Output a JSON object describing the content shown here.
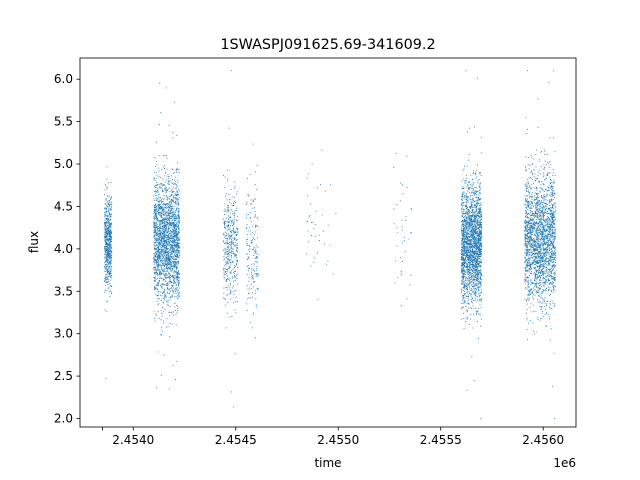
{
  "chart_data": {
    "type": "scatter",
    "title": "1SWASPJ091625.69-341609.2",
    "xlabel": "time",
    "ylabel": "flux",
    "x_offset_label": "1e6",
    "x_scale": 1000000,
    "xlim": [
      2453740,
      2456160
    ],
    "ylim": [
      1.9,
      6.25
    ],
    "x_ticks": [
      2453850,
      2454000,
      2454500,
      2455000,
      2455500,
      2456000
    ],
    "x_tick_labels": [
      "",
      "2.4540",
      "2.4545",
      "2.4550",
      "2.4555",
      "2.4560"
    ],
    "y_ticks": [
      2.0,
      2.5,
      3.0,
      3.5,
      4.0,
      4.5,
      5.0,
      5.5,
      6.0
    ],
    "y_tick_labels": [
      "2.0",
      "2.5",
      "3.0",
      "3.5",
      "4.0",
      "4.5",
      "5.0",
      "5.5",
      "6.0"
    ],
    "grid": false,
    "marker_color": "#1f77b4",
    "series": [
      {
        "observing_seasons": [
          {
            "t_start": 2453860,
            "t_end": 2453895,
            "flux_center": 4.08,
            "flux_spread": 0.28,
            "density": "high"
          },
          {
            "t_start": 2454100,
            "t_end": 2454225,
            "flux_center": 4.1,
            "flux_spread": 0.36,
            "density": "very high"
          },
          {
            "t_start": 2454440,
            "t_end": 2454510,
            "flux_center": 4.05,
            "flux_spread": 0.34,
            "density": "medium"
          },
          {
            "t_start": 2454550,
            "t_end": 2454610,
            "flux_center": 4.0,
            "flux_spread": 0.4,
            "density": "low"
          },
          {
            "t_start": 2454840,
            "t_end": 2454990,
            "flux_center": 4.3,
            "flux_spread": 0.45,
            "density": "very low"
          },
          {
            "t_start": 2455270,
            "t_end": 2455360,
            "flux_center": 4.05,
            "flux_spread": 0.4,
            "density": "very low"
          },
          {
            "t_start": 2455600,
            "t_end": 2455700,
            "flux_center": 4.05,
            "flux_spread": 0.35,
            "density": "very high"
          },
          {
            "t_start": 2455910,
            "t_end": 2456060,
            "flux_center": 4.1,
            "flux_spread": 0.38,
            "density": "very high"
          }
        ]
      }
    ]
  }
}
